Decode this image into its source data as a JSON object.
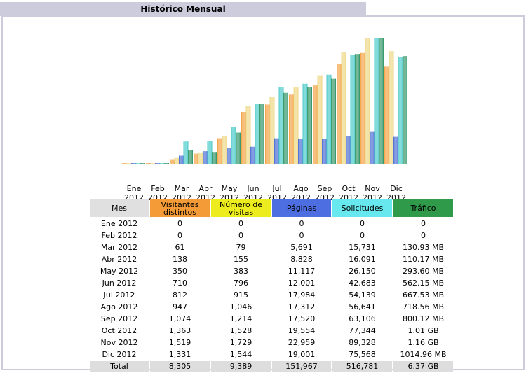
{
  "title": "Histórico Mensual",
  "colors": {
    "visitors": "#f39a34",
    "visits": "#ecd47a",
    "pages": "#3a60d0",
    "hits": "#3bc5c5",
    "traffic": "#1f8d5a",
    "header_mes": "#e0e0e0",
    "header_visitors": "#f49a36",
    "header_visits": "#ecec1e",
    "header_pages": "#4c6ee0",
    "header_hits": "#66e8ee",
    "header_traffic": "#2f9a4a",
    "total_row": "#dddddd"
  },
  "chart_data": {
    "type": "bar",
    "title": "Histórico Mensual",
    "categories": [
      "Ene 2012",
      "Feb 2012",
      "Mar 2012",
      "Abr 2012",
      "May 2012",
      "Jun 2012",
      "Jul 2012",
      "Ago 2012",
      "Sep 2012",
      "Oct 2012",
      "Nov 2012",
      "Dic 2012"
    ],
    "category_lines": [
      [
        "Ene",
        "2012"
      ],
      [
        "Feb",
        "2012"
      ],
      [
        "Mar",
        "2012"
      ],
      [
        "Abr",
        "2012"
      ],
      [
        "May",
        "2012"
      ],
      [
        "Jun",
        "2012"
      ],
      [
        "Jul",
        "2012"
      ],
      [
        "Ago",
        "2012"
      ],
      [
        "Sep",
        "2012"
      ],
      [
        "Oct",
        "2012"
      ],
      [
        "Nov",
        "2012"
      ],
      [
        "Dic",
        "2012"
      ]
    ],
    "series": [
      {
        "name": "Visitantes distintos",
        "key": "visitors",
        "values": [
          0,
          0,
          61,
          138,
          350,
          710,
          812,
          947,
          1074,
          1363,
          1519,
          1331
        ]
      },
      {
        "name": "Número de visitas",
        "key": "visits",
        "values": [
          0,
          0,
          79,
          155,
          383,
          796,
          915,
          1046,
          1214,
          1528,
          1729,
          1544
        ]
      },
      {
        "name": "Páginas",
        "key": "pages",
        "values": [
          0,
          0,
          5691,
          8828,
          11117,
          12001,
          17984,
          17312,
          17520,
          19554,
          22959,
          19001
        ]
      },
      {
        "name": "Solicitudes",
        "key": "hits",
        "values": [
          0,
          0,
          15731,
          16091,
          26150,
          42683,
          54139,
          56641,
          63106,
          77344,
          89328,
          75568
        ]
      },
      {
        "name": "Tráfico (MB)",
        "key": "traffic",
        "values": [
          0,
          0,
          130.93,
          110.17,
          293.6,
          562.15,
          667.53,
          718.56,
          800.12,
          1034.24,
          1187.84,
          1014.96
        ]
      }
    ]
  },
  "table": {
    "headers": [
      "Mes",
      "Visitantes distintos",
      "Número de visitas",
      "Páginas",
      "Solicitudes",
      "Tráfico"
    ],
    "rows": [
      [
        "Ene 2012",
        "0",
        "0",
        "0",
        "0",
        "0"
      ],
      [
        "Feb 2012",
        "0",
        "0",
        "0",
        "0",
        "0"
      ],
      [
        "Mar 2012",
        "61",
        "79",
        "5,691",
        "15,731",
        "130.93 MB"
      ],
      [
        "Abr 2012",
        "138",
        "155",
        "8,828",
        "16,091",
        "110.17 MB"
      ],
      [
        "May 2012",
        "350",
        "383",
        "11,117",
        "26,150",
        "293.60 MB"
      ],
      [
        "Jun 2012",
        "710",
        "796",
        "12,001",
        "42,683",
        "562.15 MB"
      ],
      [
        "Jul 2012",
        "812",
        "915",
        "17,984",
        "54,139",
        "667.53 MB"
      ],
      [
        "Ago 2012",
        "947",
        "1,046",
        "17,312",
        "56,641",
        "718.56 MB"
      ],
      [
        "Sep 2012",
        "1,074",
        "1,214",
        "17,520",
        "63,106",
        "800.12 MB"
      ],
      [
        "Oct 2012",
        "1,363",
        "1,528",
        "19,554",
        "77,344",
        "1.01 GB"
      ],
      [
        "Nov 2012",
        "1,519",
        "1,729",
        "22,959",
        "89,328",
        "1.16 GB"
      ],
      [
        "Dic 2012",
        "1,331",
        "1,544",
        "19,001",
        "75,568",
        "1014.96 MB"
      ]
    ],
    "total": [
      "Total",
      "8,305",
      "9,389",
      "151,967",
      "516,781",
      "6.37 GB"
    ]
  }
}
